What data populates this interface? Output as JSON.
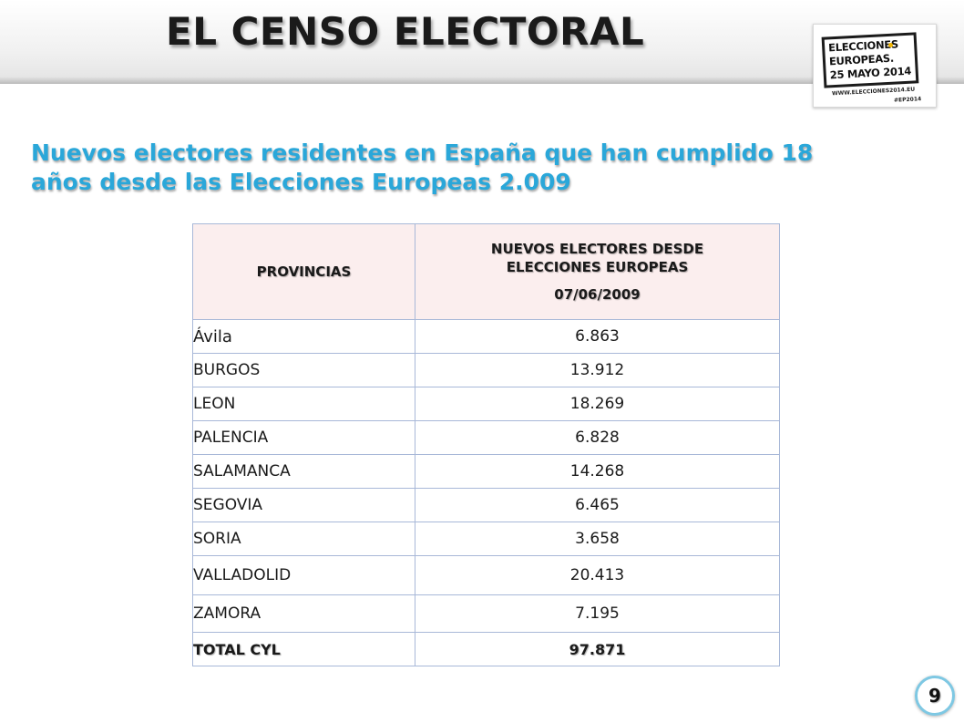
{
  "slide": {
    "title": "EL CENSO ELECTORAL",
    "subtitle": "Nuevos electores residentes en España que han cumplido 18 años desde las Elecciones Europeas 2.009",
    "page_number": "9"
  },
  "logo": {
    "line1": "ELECCIONES",
    "line2": "EUROPEAS.",
    "line3": "25 MAYO 2014",
    "url": "WWW.ELECCIONES2014.EU",
    "hashtag": "#EP2014",
    "accent_color": "#f2b500"
  },
  "table": {
    "header_col1": "PROVINCIAS",
    "header_col2_line1": "NUEVOS ELECTORES DESDE",
    "header_col2_line2": "ELECCIONES EUROPEAS",
    "header_col2_date": "07/06/2009",
    "rows": [
      {
        "province": "Ávila",
        "value": "6.863"
      },
      {
        "province": "BURGOS",
        "value": "13.912"
      },
      {
        "province": "LEON",
        "value": "18.269"
      },
      {
        "province": "PALENCIA",
        "value": "6.828"
      },
      {
        "province": "SALAMANCA",
        "value": "14.268"
      },
      {
        "province": "SEGOVIA",
        "value": "6.465"
      },
      {
        "province": "SORIA",
        "value": "3.658"
      },
      {
        "province": "VALLADOLID",
        "value": "20.413"
      },
      {
        "province": "ZAMORA",
        "value": "7.195"
      }
    ],
    "total_label": "TOTAL CYL",
    "total_value": "97.871"
  },
  "colors": {
    "subtitle": "#2aa7d9",
    "header_bg": "#fbeeee",
    "grid": "#a8b8d8",
    "page_ring": "#7ec8e3"
  }
}
